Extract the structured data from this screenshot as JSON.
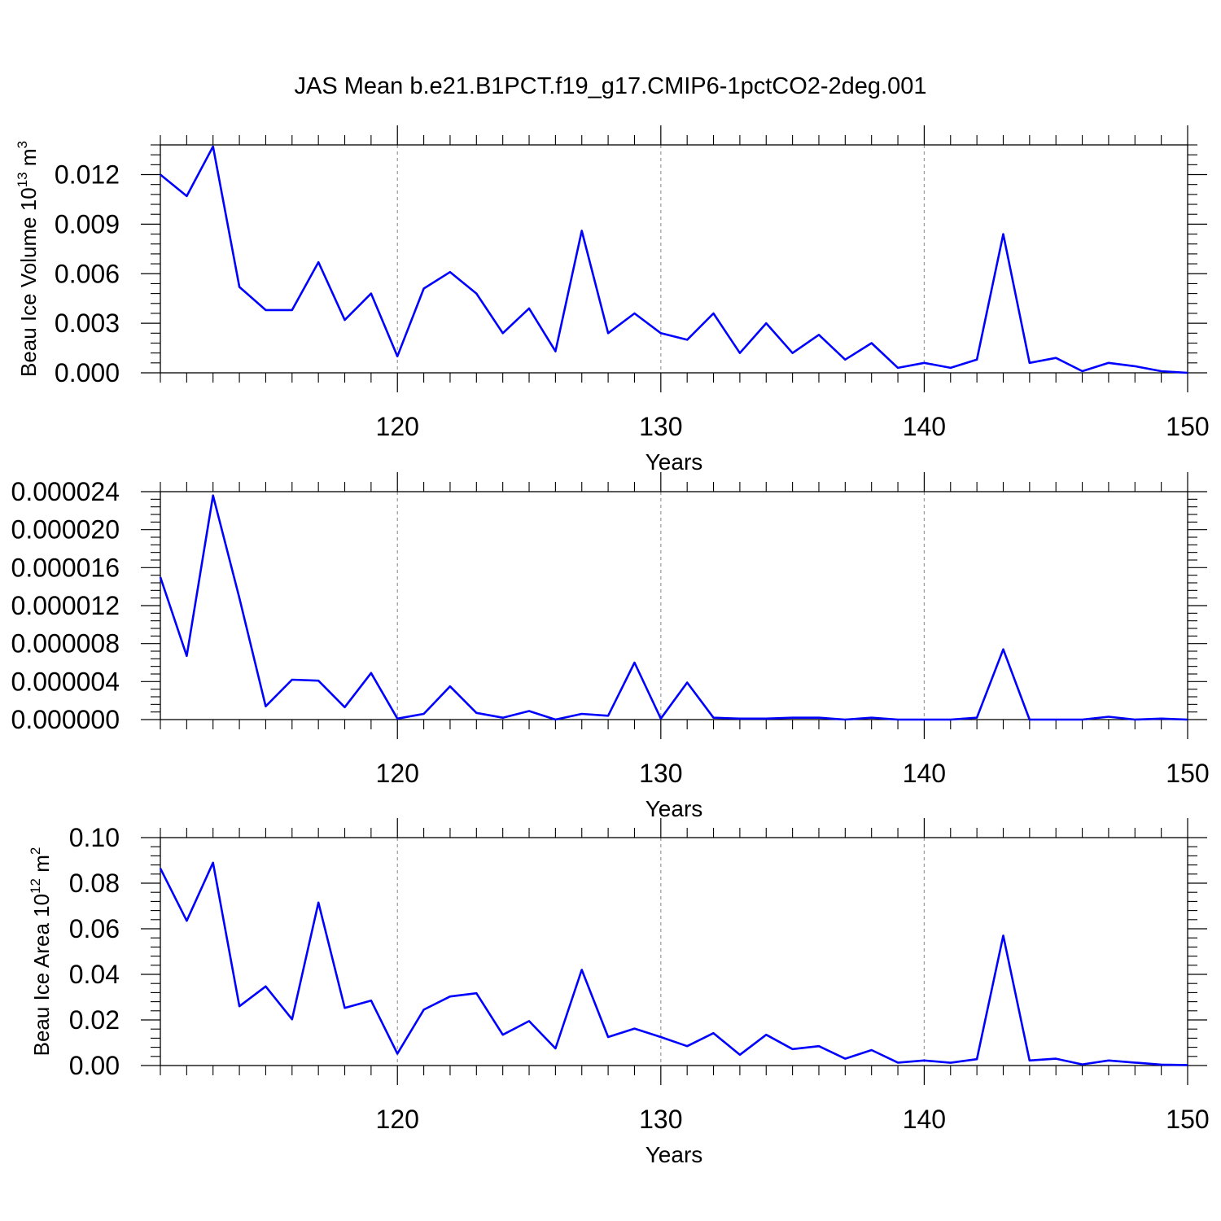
{
  "title": "JAS Mean b.e21.B1PCT.f19_g17.CMIP6-1pctCO2-2deg.001",
  "colors": {
    "line": "#0000ff",
    "axis": "#000000",
    "grid": "#999999"
  },
  "chart_data": [
    {
      "type": "line",
      "xlabel": "Years",
      "ylabel": "Beau Ice Volume 10",
      "ylabel_exp": "13",
      "ylabel_unit": " m",
      "ylabel_unit_exp": "3",
      "xlim": [
        111,
        150
      ],
      "ylim": [
        0,
        0.0138
      ],
      "x_ticks": [
        120,
        130,
        140,
        150
      ],
      "x_tick_labels": [
        "120",
        "130",
        "140",
        "150"
      ],
      "y_ticks": [
        0,
        0.003,
        0.006,
        0.009,
        0.012
      ],
      "y_tick_labels": [
        "0.000",
        "0.003",
        "0.006",
        "0.009",
        "0.012"
      ],
      "grid": "dashed vertical at major x ticks",
      "x": [
        111,
        112,
        113,
        114,
        115,
        116,
        117,
        118,
        119,
        120,
        121,
        122,
        123,
        124,
        125,
        126,
        127,
        128,
        129,
        130,
        131,
        132,
        133,
        134,
        135,
        136,
        137,
        138,
        139,
        140,
        141,
        142,
        143,
        144,
        145,
        146,
        147,
        148,
        149,
        150
      ],
      "values": [
        0.012,
        0.0107,
        0.0137,
        0.0052,
        0.0038,
        0.0038,
        0.0067,
        0.0032,
        0.0048,
        0.001,
        0.0051,
        0.0061,
        0.0048,
        0.0024,
        0.0039,
        0.0013,
        0.0086,
        0.0024,
        0.0036,
        0.0024,
        0.002,
        0.0036,
        0.0012,
        0.003,
        0.0012,
        0.0023,
        0.0008,
        0.0018,
        0.0003,
        0.0006,
        0.0003,
        0.0008,
        0.0084,
        0.0006,
        0.0009,
        0.0001,
        0.0006,
        0.0004,
        0.0001,
        0.0
      ]
    },
    {
      "type": "line",
      "xlabel": "Years",
      "ylabel": "",
      "xlim": [
        111,
        150
      ],
      "ylim": [
        0,
        2.4e-05
      ],
      "x_ticks": [
        120,
        130,
        140,
        150
      ],
      "x_tick_labels": [
        "120",
        "130",
        "140",
        "150"
      ],
      "y_ticks": [
        0,
        4e-06,
        8e-06,
        1.2e-05,
        1.6e-05,
        2e-05,
        2.4e-05
      ],
      "y_tick_labels": [
        "0.000000",
        "0.000004",
        "0.000008",
        "0.000012",
        "0.000016",
        "0.000020",
        "0.000024"
      ],
      "grid": "dashed vertical at major x ticks",
      "x": [
        111,
        112,
        113,
        114,
        115,
        116,
        117,
        118,
        119,
        120,
        121,
        122,
        123,
        124,
        125,
        126,
        127,
        128,
        129,
        130,
        131,
        132,
        133,
        134,
        135,
        136,
        137,
        138,
        139,
        140,
        141,
        142,
        143,
        144,
        145,
        146,
        147,
        148,
        149,
        150
      ],
      "values": [
        1.5e-05,
        6.7e-06,
        2.36e-05,
        1.28e-05,
        1.4e-06,
        4.2e-06,
        4.1e-06,
        1.3e-06,
        4.9e-06,
        1e-07,
        6e-07,
        3.5e-06,
        7e-07,
        2e-07,
        9e-07,
        0.0,
        6e-07,
        4e-07,
        6e-06,
        1e-07,
        3.9e-06,
        2e-07,
        1e-07,
        1e-07,
        2e-07,
        2e-07,
        0.0,
        2e-07,
        0.0,
        0.0,
        0.0,
        2e-07,
        7.4e-06,
        0.0,
        0.0,
        0.0,
        3e-07,
        0.0,
        1e-07,
        0.0
      ]
    },
    {
      "type": "line",
      "xlabel": "Years",
      "ylabel": "Beau Ice Area 10",
      "ylabel_exp": "12",
      "ylabel_unit": " m",
      "ylabel_unit_exp": "2",
      "xlim": [
        111,
        150
      ],
      "ylim": [
        0,
        0.1
      ],
      "x_ticks": [
        120,
        130,
        140,
        150
      ],
      "x_tick_labels": [
        "120",
        "130",
        "140",
        "150"
      ],
      "y_ticks": [
        0,
        0.02,
        0.04,
        0.06,
        0.08,
        0.1
      ],
      "y_tick_labels": [
        "0.00",
        "0.02",
        "0.04",
        "0.06",
        "0.08",
        "0.10"
      ],
      "grid": "dashed vertical at major x ticks",
      "x": [
        111,
        112,
        113,
        114,
        115,
        116,
        117,
        118,
        119,
        120,
        121,
        122,
        123,
        124,
        125,
        126,
        127,
        128,
        129,
        130,
        131,
        132,
        133,
        134,
        135,
        136,
        137,
        138,
        139,
        140,
        141,
        142,
        143,
        144,
        145,
        146,
        147,
        148,
        149,
        150
      ],
      "values": [
        0.0865,
        0.0635,
        0.089,
        0.026,
        0.0347,
        0.0203,
        0.0715,
        0.0253,
        0.0285,
        0.0052,
        0.0245,
        0.0303,
        0.0317,
        0.0135,
        0.0195,
        0.0075,
        0.042,
        0.0125,
        0.0162,
        0.0125,
        0.0085,
        0.0142,
        0.0047,
        0.0135,
        0.0072,
        0.0085,
        0.003,
        0.0068,
        0.0013,
        0.0022,
        0.0012,
        0.0028,
        0.057,
        0.0022,
        0.003,
        0.0005,
        0.0022,
        0.0013,
        0.0004,
        0.0002
      ]
    }
  ]
}
